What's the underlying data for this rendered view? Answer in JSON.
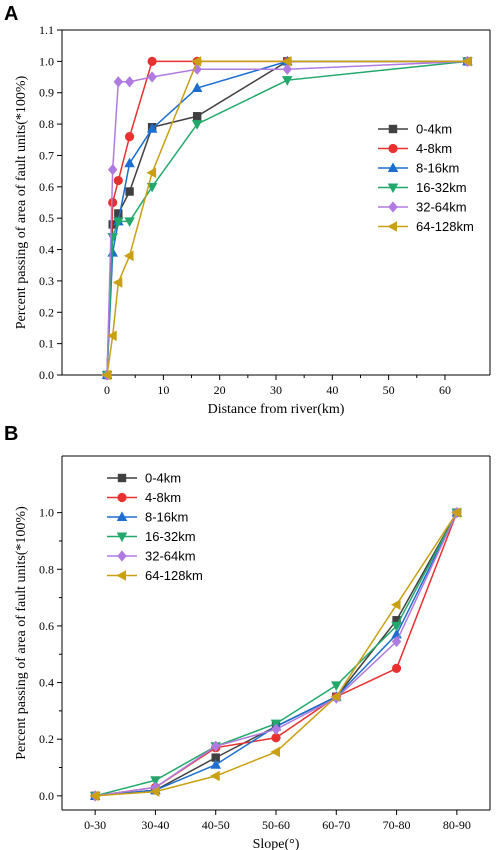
{
  "chart_data": [
    {
      "panel": "A",
      "type": "line",
      "xlabel": "Distance from river(km)",
      "ylabel": "Percent passing of area of fault units(*100%)",
      "xlim": [
        -8,
        68
      ],
      "ylim": [
        0,
        1.1
      ],
      "x_ticks": [
        0,
        10,
        20,
        30,
        40,
        50,
        60
      ],
      "y_ticks": [
        0.0,
        0.1,
        0.2,
        0.3,
        0.4,
        0.5,
        0.6,
        0.7,
        0.8,
        0.9,
        1.0,
        1.1
      ],
      "x_tick_labels": [
        "0",
        "10",
        "20",
        "30",
        "40",
        "50",
        "60"
      ],
      "y_tick_labels": [
        "0.0",
        "0.1",
        "0.2",
        "0.3",
        "0.4",
        "0.5",
        "0.6",
        "0.7",
        "0.8",
        "0.9",
        "1.0",
        "1.1"
      ],
      "grid": false,
      "legend_position": "right-middle",
      "series": [
        {
          "name": "0-4km",
          "color": "#404040",
          "marker": "square",
          "points": [
            [
              0,
              0.0
            ],
            [
              1,
              0.48
            ],
            [
              2,
              0.515
            ],
            [
              4,
              0.585
            ],
            [
              8,
              0.79
            ],
            [
              16,
              0.825
            ],
            [
              32,
              1.0
            ],
            [
              64,
              1.0
            ]
          ]
        },
        {
          "name": "4-8km",
          "color": "#e8312f",
          "marker": "circle",
          "points": [
            [
              0,
              0.0
            ],
            [
              1,
              0.55
            ],
            [
              2,
              0.62
            ],
            [
              4,
              0.76
            ],
            [
              8,
              1.0
            ],
            [
              16,
              1.0
            ],
            [
              32,
              1.0
            ],
            [
              64,
              1.0
            ]
          ]
        },
        {
          "name": "8-16km",
          "color": "#1c6fd1",
          "marker": "triangle-up",
          "points": [
            [
              0,
              0.0
            ],
            [
              1,
              0.39
            ],
            [
              2,
              0.49
            ],
            [
              4,
              0.675
            ],
            [
              8,
              0.785
            ],
            [
              16,
              0.915
            ],
            [
              32,
              1.0
            ],
            [
              64,
              1.0
            ]
          ]
        },
        {
          "name": "16-32km",
          "color": "#23a86b",
          "marker": "triangle-down",
          "points": [
            [
              0,
              0.0
            ],
            [
              1,
              0.44
            ],
            [
              2,
              0.49
            ],
            [
              4,
              0.49
            ],
            [
              8,
              0.6
            ],
            [
              16,
              0.8
            ],
            [
              32,
              0.94
            ],
            [
              64,
              1.0
            ]
          ]
        },
        {
          "name": "32-64km",
          "color": "#b07be0",
          "marker": "diamond",
          "points": [
            [
              0,
              0.0
            ],
            [
              1,
              0.655
            ],
            [
              2,
              0.935
            ],
            [
              4,
              0.935
            ],
            [
              8,
              0.95
            ],
            [
              16,
              0.975
            ],
            [
              32,
              0.975
            ],
            [
              64,
              1.0
            ]
          ]
        },
        {
          "name": "64-128km",
          "color": "#c9a012",
          "marker": "triangle-left",
          "points": [
            [
              0,
              0.0
            ],
            [
              1,
              0.125
            ],
            [
              2,
              0.295
            ],
            [
              4,
              0.38
            ],
            [
              8,
              0.645
            ],
            [
              16,
              1.0
            ],
            [
              32,
              1.0
            ],
            [
              64,
              1.0
            ]
          ]
        }
      ]
    },
    {
      "panel": "B",
      "type": "line",
      "xlabel": "Slope(°)",
      "ylabel": "Percent passing of area of fault units(*100%)",
      "categories": [
        "0-30",
        "30-40",
        "40-50",
        "50-60",
        "60-70",
        "70-80",
        "80-90"
      ],
      "ylim": [
        -0.05,
        1.2
      ],
      "y_ticks": [
        0.0,
        0.2,
        0.4,
        0.6,
        0.8,
        1.0
      ],
      "y_tick_labels": [
        "0.0",
        "0.2",
        "0.4",
        "0.6",
        "0.8",
        "1.0"
      ],
      "grid": false,
      "legend_position": "top-left",
      "series": [
        {
          "name": "0-4km",
          "color": "#404040",
          "marker": "square",
          "values": [
            0.0,
            0.02,
            0.135,
            0.245,
            0.35,
            0.62,
            1.0
          ]
        },
        {
          "name": "4-8km",
          "color": "#e8312f",
          "marker": "circle",
          "values": [
            0.0,
            0.03,
            0.17,
            0.205,
            0.35,
            0.45,
            1.0
          ]
        },
        {
          "name": "8-16km",
          "color": "#1c6fd1",
          "marker": "triangle-up",
          "values": [
            0.0,
            0.02,
            0.11,
            0.245,
            0.35,
            0.57,
            1.0
          ]
        },
        {
          "name": "16-32km",
          "color": "#23a86b",
          "marker": "triangle-down",
          "values": [
            0.0,
            0.055,
            0.175,
            0.255,
            0.39,
            0.6,
            1.0
          ]
        },
        {
          "name": "32-64km",
          "color": "#b07be0",
          "marker": "diamond",
          "values": [
            0.0,
            0.03,
            0.175,
            0.235,
            0.345,
            0.545,
            1.0
          ]
        },
        {
          "name": "64-128km",
          "color": "#c9a012",
          "marker": "triangle-left",
          "values": [
            0.0,
            0.015,
            0.07,
            0.155,
            0.35,
            0.675,
            1.0
          ]
        }
      ]
    }
  ]
}
